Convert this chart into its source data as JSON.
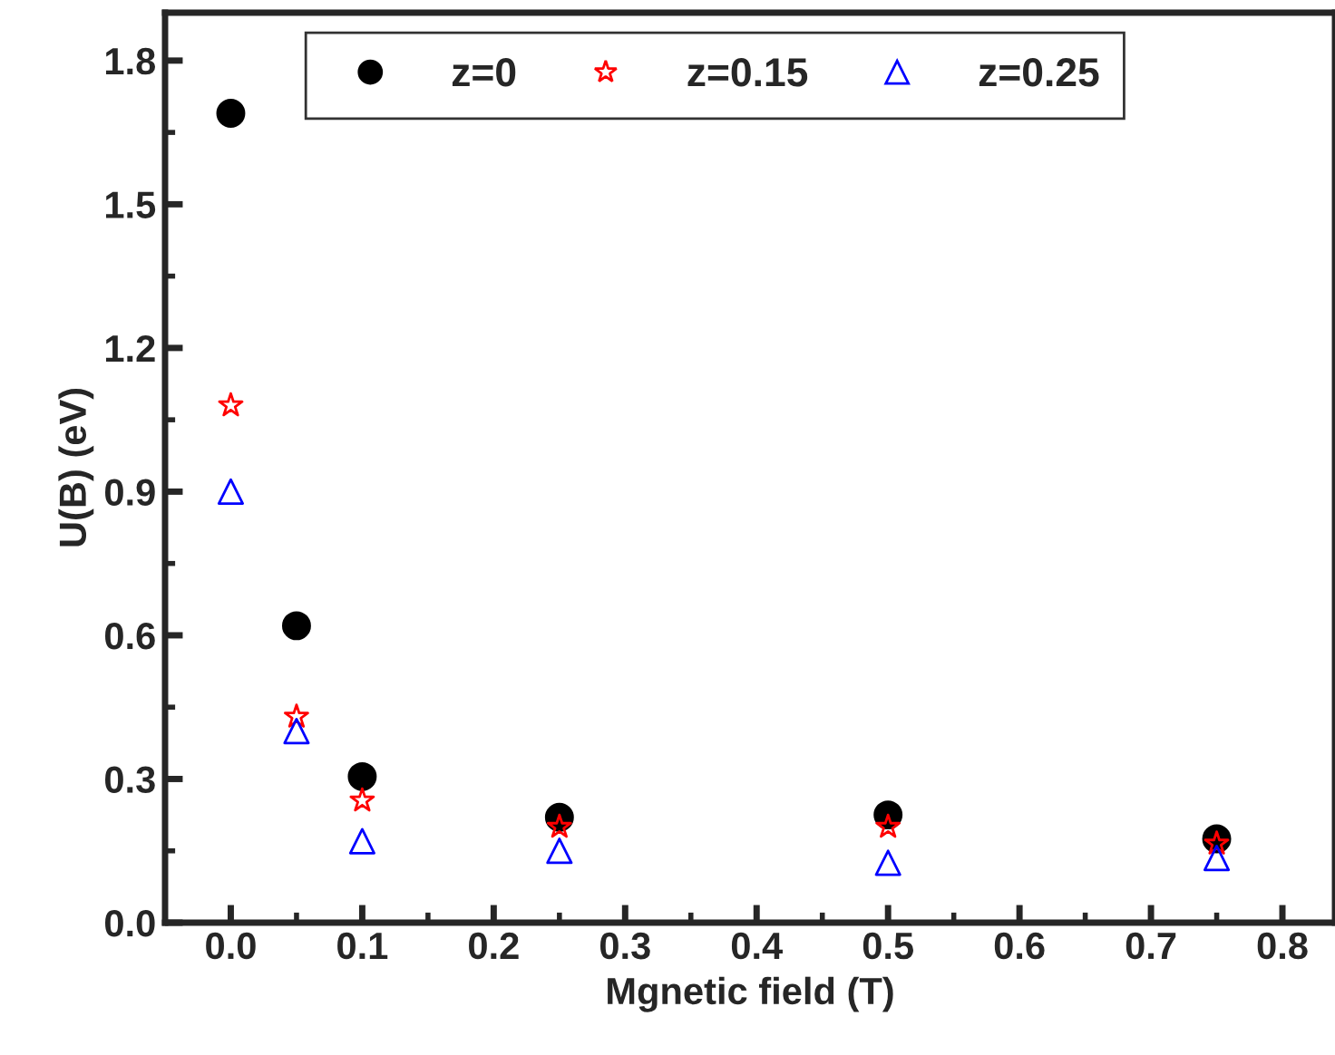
{
  "chart_data": {
    "type": "scatter",
    "xlabel": "Mgnetic field (T)",
    "ylabel": "U(B) (eV)",
    "x": [
      0,
      0.05,
      0.1,
      0.25,
      0.5,
      0.75
    ],
    "series": [
      {
        "name": "z=0",
        "color": "#000000",
        "marker": "circle",
        "values": [
          1.69,
          0.62,
          0.305,
          0.22,
          0.225,
          0.175
        ]
      },
      {
        "name": "z=0.15",
        "color": "#ff0000",
        "marker": "star",
        "values": [
          1.08,
          0.43,
          0.255,
          0.2,
          0.2,
          0.165
        ]
      },
      {
        "name": "z=0.25",
        "color": "#0000ff",
        "marker": "triangle",
        "values": [
          0.9,
          0.4,
          0.17,
          0.15,
          0.125,
          0.135
        ]
      }
    ],
    "xlim": [
      -0.05,
      0.84
    ],
    "ylim": [
      0,
      1.9
    ],
    "xticks": [
      {
        "value": 0,
        "label": "0.0"
      },
      0.1,
      0.2,
      0.3,
      0.4,
      0.5,
      0.6,
      0.7,
      0.8
    ],
    "yticks": [
      {
        "value": 0,
        "label": "0.0"
      },
      0.3,
      0.6,
      0.9,
      1.2,
      1.5,
      1.8
    ],
    "grid": false,
    "legend": "top"
  }
}
